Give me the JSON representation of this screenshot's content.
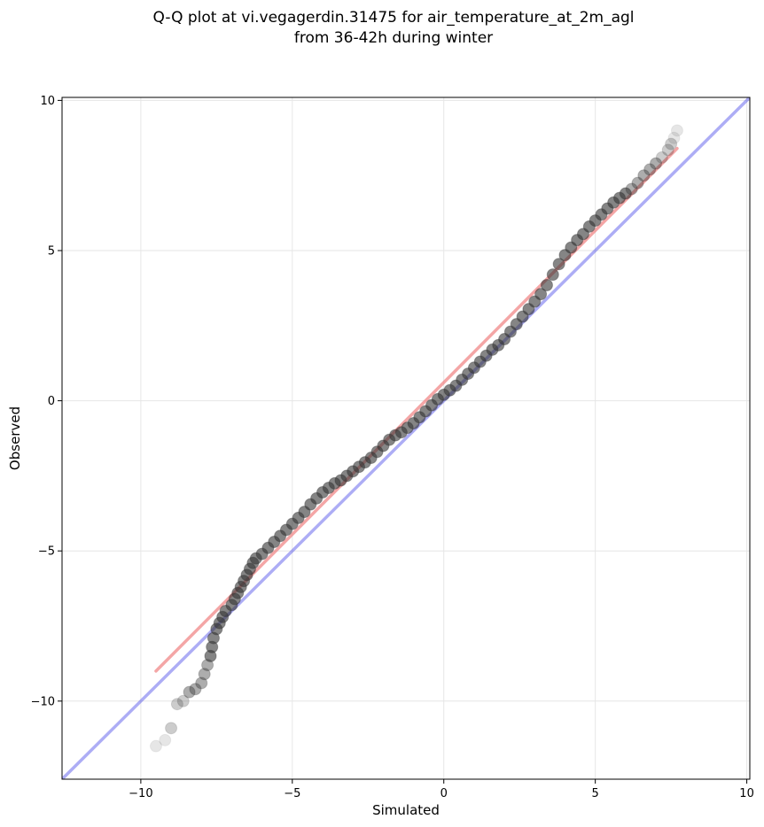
{
  "chart_data": {
    "type": "scatter",
    "title_line1": "Q-Q plot at vi.vegagerdin.31475 for air_temperature_at_2m_agl",
    "title_line2": "from 36-42h during winter",
    "xlabel": "Simulated",
    "ylabel": "Observed",
    "xlim": [
      -12.6,
      10.1
    ],
    "ylim": [
      -12.6,
      10.1
    ],
    "xticks": [
      -10,
      -5,
      0,
      5,
      10
    ],
    "yticks": [
      -10,
      -5,
      0,
      5,
      10
    ],
    "xtick_labels": [
      "−10",
      "−5",
      "0",
      "5",
      "10"
    ],
    "ytick_labels": [
      "−10",
      "−5",
      "0",
      "5",
      "10"
    ],
    "grid": true,
    "reference_line": {
      "name": "y = x",
      "color": "#4a4ae8",
      "from": [
        -12.6,
        -12.6
      ],
      "to": [
        10.1,
        10.1
      ]
    },
    "fit_line": {
      "color": "#f08080",
      "from": [
        -9.5,
        -9.0
      ],
      "to": [
        7.7,
        8.4
      ]
    },
    "points_color": "#333333",
    "points": [
      [
        -9.5,
        -11.5
      ],
      [
        -9.2,
        -11.3
      ],
      [
        -9.0,
        -10.9
      ],
      [
        -8.8,
        -10.1
      ],
      [
        -8.6,
        -10.0
      ],
      [
        -8.4,
        -9.7
      ],
      [
        -8.2,
        -9.6
      ],
      [
        -8.0,
        -9.4
      ],
      [
        -7.9,
        -9.1
      ],
      [
        -7.8,
        -8.8
      ],
      [
        -7.7,
        -8.5
      ],
      [
        -7.65,
        -8.2
      ],
      [
        -7.6,
        -7.9
      ],
      [
        -7.5,
        -7.6
      ],
      [
        -7.4,
        -7.4
      ],
      [
        -7.3,
        -7.2
      ],
      [
        -7.2,
        -7.0
      ],
      [
        -7.0,
        -6.8
      ],
      [
        -6.9,
        -6.6
      ],
      [
        -6.8,
        -6.4
      ],
      [
        -6.7,
        -6.2
      ],
      [
        -6.6,
        -6.0
      ],
      [
        -6.5,
        -5.8
      ],
      [
        -6.4,
        -5.6
      ],
      [
        -6.3,
        -5.4
      ],
      [
        -6.2,
        -5.25
      ],
      [
        -6.0,
        -5.1
      ],
      [
        -5.8,
        -4.9
      ],
      [
        -5.6,
        -4.7
      ],
      [
        -5.4,
        -4.5
      ],
      [
        -5.2,
        -4.3
      ],
      [
        -5.0,
        -4.1
      ],
      [
        -4.8,
        -3.9
      ],
      [
        -4.6,
        -3.7
      ],
      [
        -4.4,
        -3.45
      ],
      [
        -4.2,
        -3.25
      ],
      [
        -4.0,
        -3.05
      ],
      [
        -3.8,
        -2.9
      ],
      [
        -3.6,
        -2.75
      ],
      [
        -3.4,
        -2.65
      ],
      [
        -3.2,
        -2.5
      ],
      [
        -3.0,
        -2.35
      ],
      [
        -2.8,
        -2.2
      ],
      [
        -2.6,
        -2.05
      ],
      [
        -2.4,
        -1.9
      ],
      [
        -2.2,
        -1.7
      ],
      [
        -2.0,
        -1.5
      ],
      [
        -1.8,
        -1.3
      ],
      [
        -1.6,
        -1.15
      ],
      [
        -1.4,
        -1.05
      ],
      [
        -1.2,
        -0.9
      ],
      [
        -1.0,
        -0.75
      ],
      [
        -0.8,
        -0.55
      ],
      [
        -0.6,
        -0.35
      ],
      [
        -0.4,
        -0.15
      ],
      [
        -0.2,
        0.05
      ],
      [
        0.0,
        0.2
      ],
      [
        0.2,
        0.35
      ],
      [
        0.4,
        0.5
      ],
      [
        0.6,
        0.7
      ],
      [
        0.8,
        0.9
      ],
      [
        1.0,
        1.1
      ],
      [
        1.2,
        1.3
      ],
      [
        1.4,
        1.5
      ],
      [
        1.6,
        1.7
      ],
      [
        1.8,
        1.85
      ],
      [
        2.0,
        2.05
      ],
      [
        2.2,
        2.3
      ],
      [
        2.4,
        2.55
      ],
      [
        2.6,
        2.8
      ],
      [
        2.8,
        3.05
      ],
      [
        3.0,
        3.3
      ],
      [
        3.2,
        3.55
      ],
      [
        3.4,
        3.85
      ],
      [
        3.6,
        4.2
      ],
      [
        3.8,
        4.55
      ],
      [
        4.0,
        4.85
      ],
      [
        4.2,
        5.1
      ],
      [
        4.4,
        5.35
      ],
      [
        4.6,
        5.55
      ],
      [
        4.8,
        5.8
      ],
      [
        5.0,
        6.0
      ],
      [
        5.2,
        6.2
      ],
      [
        5.4,
        6.4
      ],
      [
        5.6,
        6.6
      ],
      [
        5.8,
        6.75
      ],
      [
        6.0,
        6.9
      ],
      [
        6.2,
        7.05
      ],
      [
        6.4,
        7.25
      ],
      [
        6.6,
        7.5
      ],
      [
        6.8,
        7.7
      ],
      [
        7.0,
        7.9
      ],
      [
        7.2,
        8.1
      ],
      [
        7.4,
        8.35
      ],
      [
        7.5,
        8.55
      ],
      [
        7.6,
        8.75
      ],
      [
        7.7,
        9.0
      ]
    ]
  }
}
